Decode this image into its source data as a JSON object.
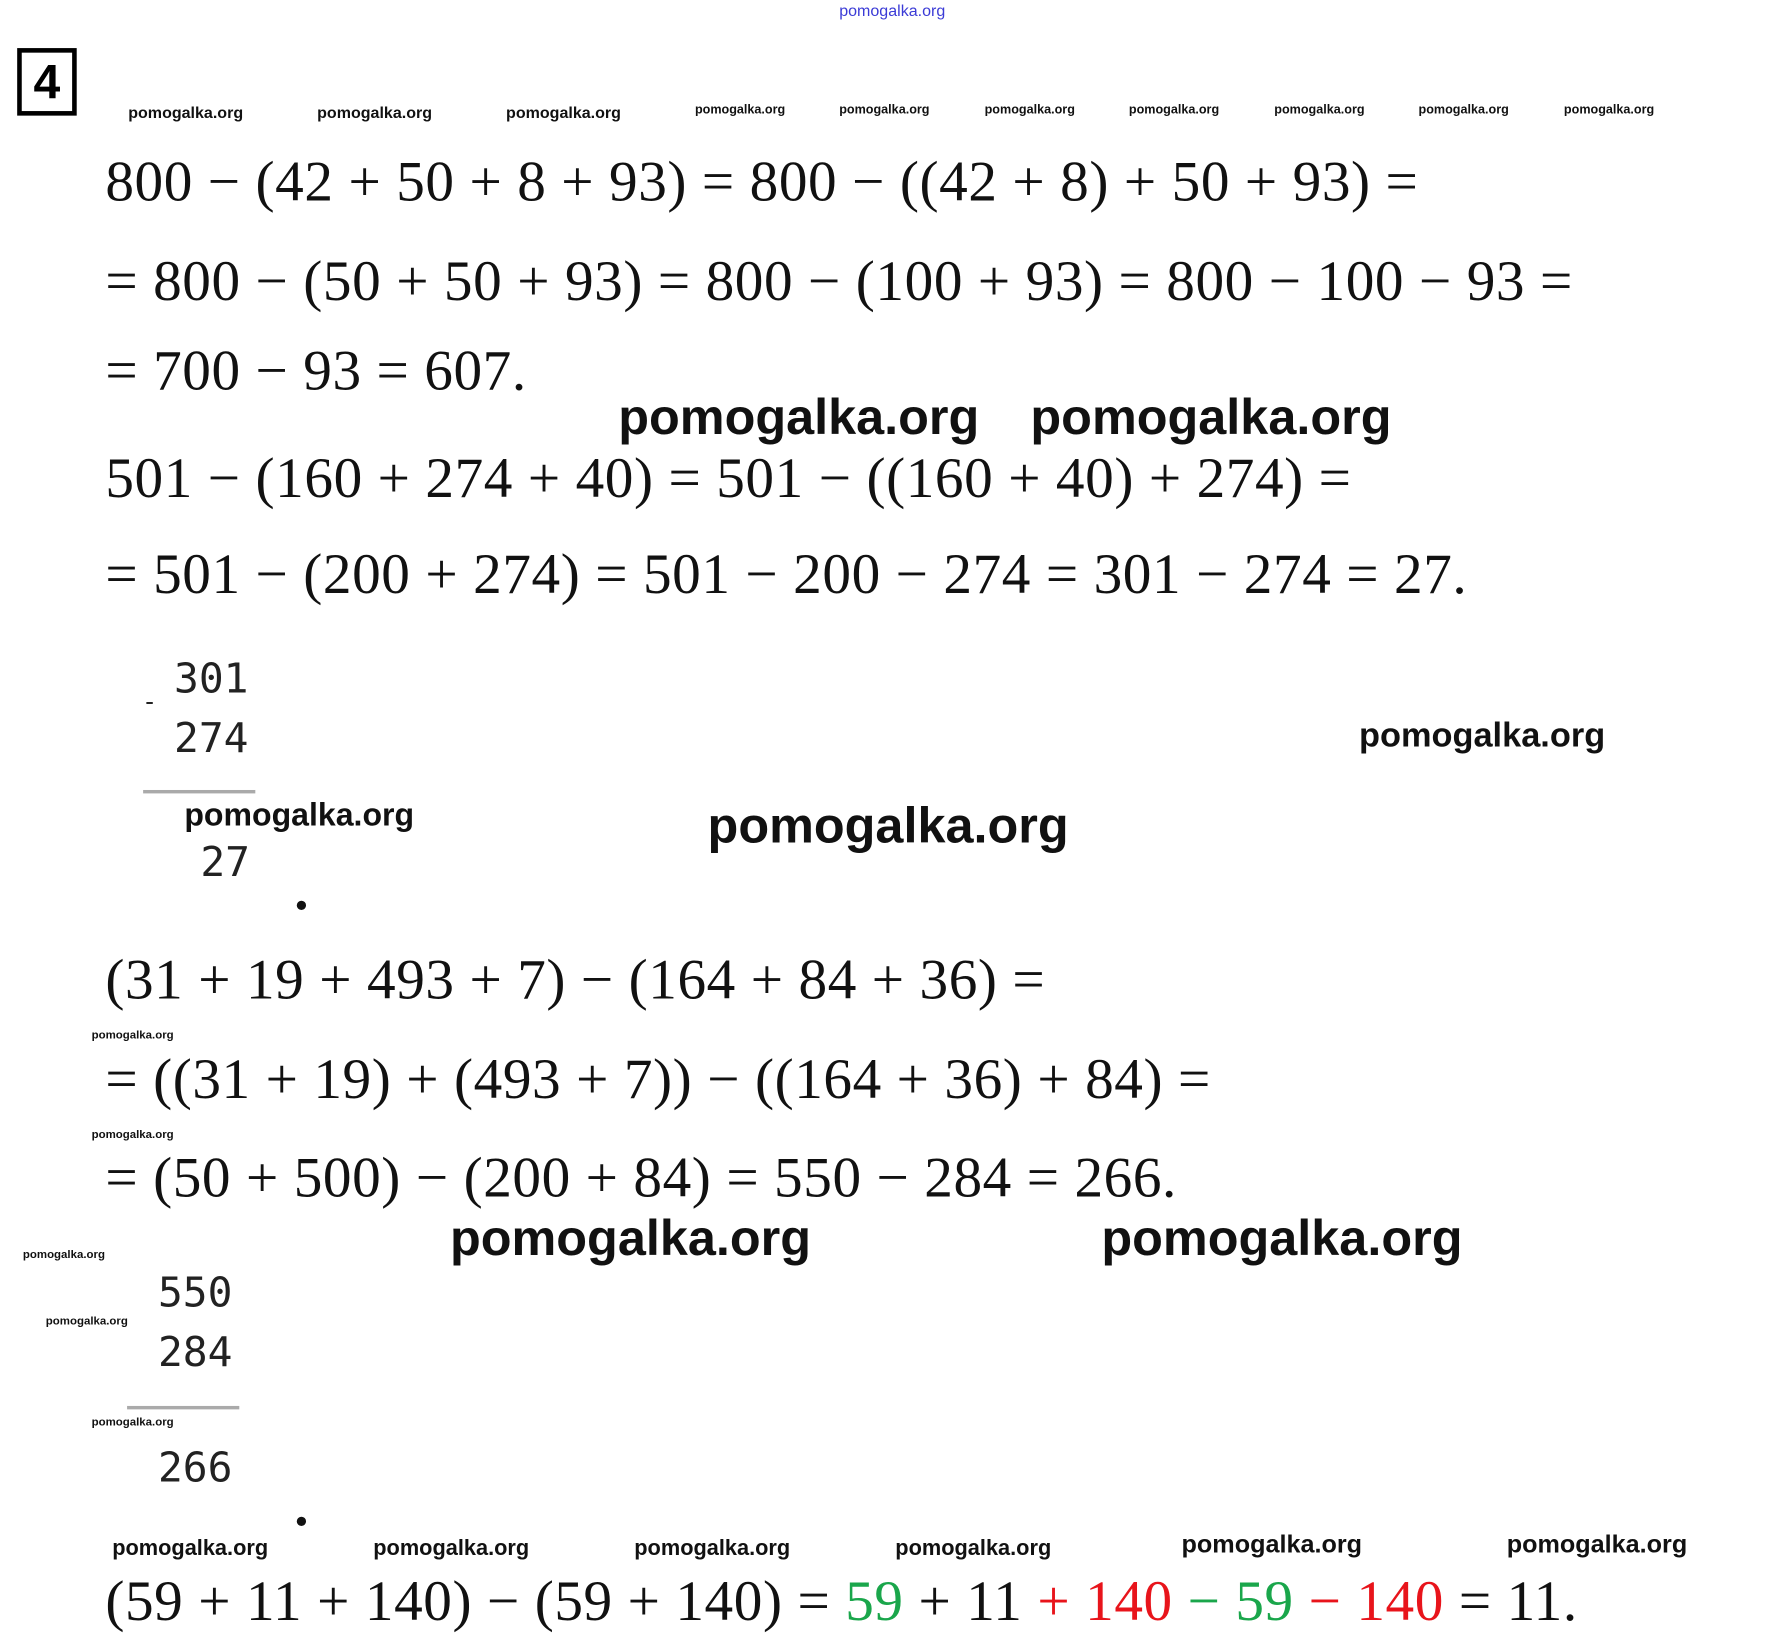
{
  "task_number": "4",
  "watermark": "pomogalka.org",
  "equations": [
    "800 − (42 + 50 + 8 + 93) = 800 − ((42 + 8) + 50 + 93) =",
    "= 800 − (50 + 50 + 93) = 800 − (100 + 93) = 800 − 100 − 93 =",
    "= 700 − 93 = 607.",
    "501 − (160 + 274 + 40) = 501 − ((160 + 40) + 274) =",
    "= 501 − (200 + 274) = 501 − 200 − 274 = 301 − 274 = 27.",
    "(31 + 19 + 493 + 7) − (164 + 84 + 36) =",
    "= ((31 + 19) + (493 + 7)) − ((164 + 36) + 84) =",
    "= (50 + 500) − (200 + 84) = 550 − 284 = 266."
  ],
  "column1": {
    "minuend": "301",
    "sign": "-",
    "subtrahend": "274",
    "result": "27",
    "dot": "."
  },
  "column2": {
    "minuend": "550",
    "subtrahend": "284",
    "result": "266",
    "dot": "."
  },
  "last_equation": [
    {
      "text": "(59 + 11 + 140) − (59 + 140) = ",
      "color": "#111111"
    },
    {
      "text": "59",
      "color": "#1aa64b"
    },
    {
      "text": " + 11 ",
      "color": "#111111"
    },
    {
      "text": "+ 140",
      "color": "#e8141b"
    },
    {
      "text": " − 59",
      "color": "#1aa64b"
    },
    {
      "text": " − 140",
      "color": "#e8141b"
    },
    {
      "text": " = 11.",
      "color": "#111111"
    }
  ],
  "colors": {
    "highlight_green": "#1aa64b",
    "highlight_red": "#e8141b",
    "watermark_top": "#3b3bd6"
  }
}
